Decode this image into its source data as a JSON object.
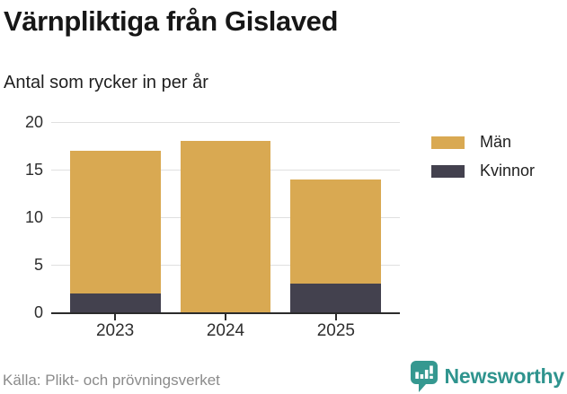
{
  "title": "Värnpliktiga från Gislaved",
  "subtitle": "Antal som rycker in per år",
  "source": "Källa: Plikt- och prövningsverket",
  "brand": {
    "wordmark": "Newsworthy",
    "teal": "#2f948e",
    "icon": "bar-chart-speech-bubble-icon"
  },
  "legend": [
    {
      "label": "Män",
      "color": "#d9a952"
    },
    {
      "label": "Kvinnor",
      "color": "#43414e"
    }
  ],
  "colors": {
    "men": "#d9a952",
    "women": "#43414e",
    "gridline": "#e0e0e0",
    "axis": "#2b2b2b",
    "source_text": "#8b8b8b"
  },
  "chart_data": {
    "type": "bar",
    "stacked": true,
    "title": "Värnpliktiga från Gislaved",
    "subtitle": "Antal som rycker in per år",
    "categories": [
      "2023",
      "2024",
      "2025"
    ],
    "series": [
      {
        "name": "Män",
        "color": "#d9a952",
        "values": [
          15,
          18,
          11
        ]
      },
      {
        "name": "Kvinnor",
        "color": "#43414e",
        "values": [
          2,
          0,
          3
        ]
      }
    ],
    "stack_order_top_to_bottom": [
      "Män",
      "Kvinnor"
    ],
    "totals": [
      17,
      18,
      14
    ],
    "xlabel": "",
    "ylabel": "",
    "ylim": [
      0,
      20
    ],
    "yticks": [
      0,
      5,
      10,
      15,
      20
    ],
    "grid": true,
    "legend_position": "right"
  }
}
